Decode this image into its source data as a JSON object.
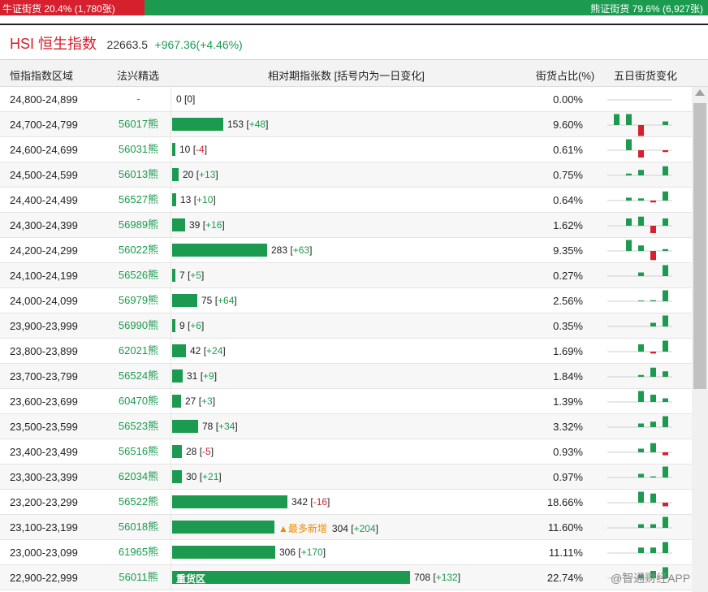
{
  "sentiment": {
    "bull_label": "牛证街货 20.4% (1,780张)",
    "bull_share": 0.204,
    "bear_label": "熊证街货 79.6% (6,927张)",
    "bear_share": 0.796
  },
  "index": {
    "title": "HSI 恒生指数",
    "value": "22663.5",
    "change": "+967.36(+4.46%)"
  },
  "columns": {
    "range": "恒指指数区域",
    "pick": "法兴精选",
    "relative": "相对期指张数 [括号内为一日变化]",
    "share": "街货占比(%)",
    "five_day": "五日街货变化"
  },
  "rows": [
    {
      "range": "24,800-24,899",
      "pick": "-",
      "count": "0",
      "delta": "0",
      "pct": "0.00%",
      "tag": "",
      "spark": [
        0,
        0,
        0,
        0,
        0
      ]
    },
    {
      "range": "24,700-24,799",
      "pick": "56017熊",
      "count": "153",
      "delta": "+48",
      "pct": "9.60%",
      "tag": "",
      "spark": [
        3,
        3,
        -3,
        0,
        1
      ]
    },
    {
      "range": "24,600-24,699",
      "pick": "56031熊",
      "count": "10",
      "delta": "-4",
      "pct": "0.61%",
      "tag": "",
      "spark": [
        0,
        3,
        -2,
        0,
        -0.5
      ]
    },
    {
      "range": "24,500-24,599",
      "pick": "56013熊",
      "count": "20",
      "delta": "+13",
      "pct": "0.75%",
      "tag": "",
      "spark": [
        0,
        0.5,
        1.5,
        0,
        2.5
      ]
    },
    {
      "range": "24,400-24,499",
      "pick": "56527熊",
      "count": "13",
      "delta": "+10",
      "pct": "0.64%",
      "tag": "",
      "spark": [
        0,
        0.8,
        0.6,
        -0.5,
        2.5
      ]
    },
    {
      "range": "24,300-24,399",
      "pick": "56989熊",
      "count": "39",
      "delta": "+16",
      "pct": "1.62%",
      "tag": "",
      "spark": [
        0,
        2,
        2.5,
        -2,
        2
      ]
    },
    {
      "range": "24,200-24,299",
      "pick": "56022熊",
      "count": "283",
      "delta": "+63",
      "pct": "9.35%",
      "tag": "",
      "spark": [
        0,
        3,
        1.5,
        -2.5,
        0.5
      ]
    },
    {
      "range": "24,100-24,199",
      "pick": "56526熊",
      "count": "7",
      "delta": "+5",
      "pct": "0.27%",
      "tag": "",
      "spark": [
        0,
        0,
        1,
        0,
        3
      ]
    },
    {
      "range": "24,000-24,099",
      "pick": "56979熊",
      "count": "75",
      "delta": "+64",
      "pct": "2.56%",
      "tag": "",
      "spark": [
        0,
        0,
        0.2,
        0.3,
        3
      ]
    },
    {
      "range": "23,900-23,999",
      "pick": "56990熊",
      "count": "9",
      "delta": "+6",
      "pct": "0.35%",
      "tag": "",
      "spark": [
        0,
        0,
        0,
        1,
        3
      ]
    },
    {
      "range": "23,800-23,899",
      "pick": "62021熊",
      "count": "42",
      "delta": "+24",
      "pct": "1.69%",
      "tag": "",
      "spark": [
        0,
        0,
        2,
        -0.5,
        3
      ]
    },
    {
      "range": "23,700-23,799",
      "pick": "56524熊",
      "count": "31",
      "delta": "+9",
      "pct": "1.84%",
      "tag": "",
      "spark": [
        0,
        0,
        0.5,
        2.5,
        1.5
      ]
    },
    {
      "range": "23,600-23,699",
      "pick": "60470熊",
      "count": "27",
      "delta": "+3",
      "pct": "1.39%",
      "tag": "",
      "spark": [
        0,
        0,
        3,
        2,
        1
      ]
    },
    {
      "range": "23,500-23,599",
      "pick": "56523熊",
      "count": "78",
      "delta": "+34",
      "pct": "3.32%",
      "tag": "",
      "spark": [
        0,
        0,
        1,
        1.5,
        3
      ]
    },
    {
      "range": "23,400-23,499",
      "pick": "56516熊",
      "count": "28",
      "delta": "-5",
      "pct": "0.93%",
      "tag": "",
      "spark": [
        0,
        0,
        1,
        2.5,
        -0.8
      ]
    },
    {
      "range": "23,300-23,399",
      "pick": "62034熊",
      "count": "30",
      "delta": "+21",
      "pct": "0.97%",
      "tag": "",
      "spark": [
        0,
        0,
        1,
        0.3,
        3
      ]
    },
    {
      "range": "23,200-23,299",
      "pick": "56522熊",
      "count": "342",
      "delta": "-16",
      "pct": "18.66%",
      "tag": "",
      "spark": [
        0,
        0,
        3,
        2.5,
        -1
      ]
    },
    {
      "range": "23,100-23,199",
      "pick": "56018熊",
      "count": "304",
      "delta": "+204",
      "pct": "11.60%",
      "tag": "▲最多新增",
      "spark": [
        0,
        0,
        1,
        1,
        3
      ]
    },
    {
      "range": "23,000-23,099",
      "pick": "61965熊",
      "count": "306",
      "delta": "+170",
      "pct": "11.11%",
      "tag": "",
      "spark": [
        0,
        0,
        1.5,
        1.5,
        3
      ]
    },
    {
      "range": "22,900-22,999",
      "pick": "56011熊",
      "count": "708",
      "delta": "+132",
      "pct": "22.74%",
      "tag": "重货区",
      "spark": [
        0,
        0,
        1,
        2,
        3
      ]
    }
  ],
  "watermark": "@智通财经APP",
  "colors": {
    "green": "#1c9b50",
    "red": "#d6202e",
    "orange": "#f08c00"
  }
}
